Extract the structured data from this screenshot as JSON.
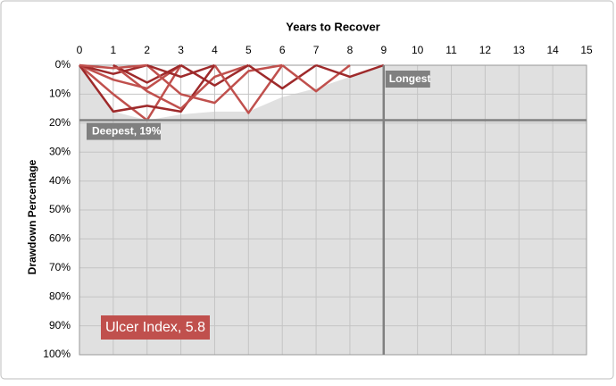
{
  "chart_data": {
    "type": "line",
    "x_label": "Years to Recover",
    "y_label": "Drawdown Percentage",
    "xlim": [
      0,
      15
    ],
    "ylim": [
      0,
      100
    ],
    "xticks": [
      0,
      1,
      2,
      3,
      4,
      5,
      6,
      7,
      8,
      9,
      10,
      11,
      12,
      13,
      14,
      15
    ],
    "yticks": [
      {
        "value": 0,
        "label": "0%"
      },
      {
        "value": 10,
        "label": "10%"
      },
      {
        "value": 20,
        "label": "20%"
      },
      {
        "value": 30,
        "label": "30%"
      },
      {
        "value": 40,
        "label": "40%"
      },
      {
        "value": 50,
        "label": "50%"
      },
      {
        "value": 60,
        "label": "60%"
      },
      {
        "value": 70,
        "label": "70%"
      },
      {
        "value": 80,
        "label": "80%"
      },
      {
        "value": 90,
        "label": "90%"
      },
      {
        "value": 100,
        "label": "100%"
      }
    ],
    "grid": true,
    "envelope": {
      "color": "#e0e0e0",
      "x": [
        0,
        1,
        2,
        3,
        4,
        5,
        6,
        7,
        8,
        9
      ],
      "values": [
        0,
        16,
        19,
        17,
        16,
        16,
        11,
        8,
        4,
        0
      ]
    },
    "series": [
      {
        "color": "#c0504d",
        "x": [
          0,
          1,
          2,
          3
        ],
        "values": [
          0,
          10,
          19,
          0
        ]
      },
      {
        "color": "#9e2a2b",
        "x": [
          0,
          1,
          2,
          3,
          4
        ],
        "values": [
          0,
          16,
          14,
          16,
          0
        ]
      },
      {
        "color": "#c0504d",
        "x": [
          0,
          1,
          2,
          3
        ],
        "values": [
          0,
          5,
          8,
          0
        ]
      },
      {
        "color": "#9e2a2b",
        "x": [
          0,
          1,
          2
        ],
        "values": [
          0,
          3,
          0
        ]
      },
      {
        "color": "#c0504d",
        "x": [
          1,
          2,
          3,
          4,
          5
        ],
        "values": [
          0,
          9,
          15,
          4,
          0
        ]
      },
      {
        "color": "#9e2a2b",
        "x": [
          1,
          2,
          3
        ],
        "values": [
          0,
          6,
          0
        ]
      },
      {
        "color": "#c0504d",
        "x": [
          2,
          3,
          4,
          5,
          6
        ],
        "values": [
          0,
          10,
          13,
          2,
          0
        ]
      },
      {
        "color": "#9e2a2b",
        "x": [
          3,
          4,
          5
        ],
        "values": [
          0,
          7,
          0
        ]
      },
      {
        "color": "#c0504d",
        "x": [
          4,
          5,
          6
        ],
        "values": [
          0,
          16.5,
          0
        ]
      },
      {
        "color": "#9e2a2b",
        "x": [
          5,
          6,
          7
        ],
        "values": [
          0,
          8,
          0
        ]
      },
      {
        "color": "#c0504d",
        "x": [
          6,
          7,
          8
        ],
        "values": [
          0,
          9,
          0
        ]
      },
      {
        "color": "#9e2a2b",
        "x": [
          7,
          8,
          9
        ],
        "values": [
          0,
          4,
          0
        ]
      },
      {
        "color": "#c0504d",
        "x": [
          0,
          1,
          2
        ],
        "values": [
          0,
          1,
          0
        ]
      },
      {
        "color": "#9e2a2b",
        "x": [
          2,
          3,
          4
        ],
        "values": [
          0,
          4,
          0
        ]
      }
    ],
    "deepest": {
      "value": 19,
      "label": "Deepest, 19%"
    },
    "longest": {
      "value": 9,
      "label": "Longest"
    },
    "ulcer_index": "Ulcer Index, 5.8"
  }
}
